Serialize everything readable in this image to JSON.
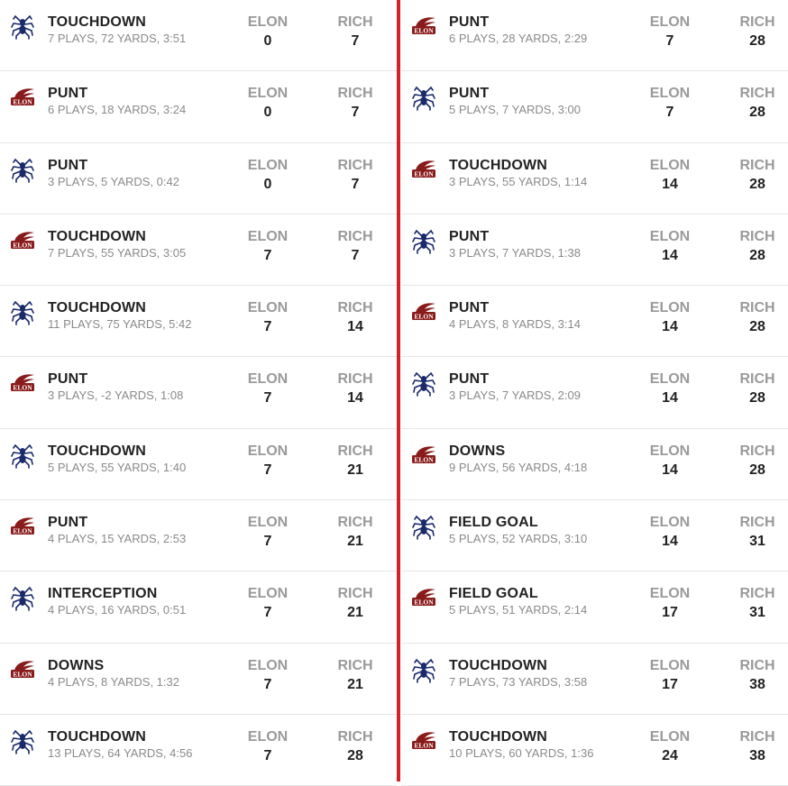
{
  "teams": {
    "home_abbr": "ELON",
    "away_abbr": "RICH"
  },
  "left_column": [
    {
      "team": "rich",
      "result": "TOUCHDOWN",
      "summary": "7 PLAYS, 72 YARDS, 3:51",
      "elon": "0",
      "rich": "7"
    },
    {
      "team": "elon",
      "result": "PUNT",
      "summary": "6 PLAYS, 18 YARDS, 3:24",
      "elon": "0",
      "rich": "7"
    },
    {
      "team": "rich",
      "result": "PUNT",
      "summary": "3 PLAYS, 5 YARDS, 0:42",
      "elon": "0",
      "rich": "7"
    },
    {
      "team": "elon",
      "result": "TOUCHDOWN",
      "summary": "7 PLAYS, 55 YARDS, 3:05",
      "elon": "7",
      "rich": "7"
    },
    {
      "team": "rich",
      "result": "TOUCHDOWN",
      "summary": "11 PLAYS, 75 YARDS, 5:42",
      "elon": "7",
      "rich": "14"
    },
    {
      "team": "elon",
      "result": "PUNT",
      "summary": "3 PLAYS, -2 YARDS, 1:08",
      "elon": "7",
      "rich": "14"
    },
    {
      "team": "rich",
      "result": "TOUCHDOWN",
      "summary": "5 PLAYS, 55 YARDS, 1:40",
      "elon": "7",
      "rich": "21"
    },
    {
      "team": "elon",
      "result": "PUNT",
      "summary": "4 PLAYS, 15 YARDS, 2:53",
      "elon": "7",
      "rich": "21"
    },
    {
      "team": "rich",
      "result": "INTERCEPTION",
      "summary": "4 PLAYS, 16 YARDS, 0:51",
      "elon": "7",
      "rich": "21"
    },
    {
      "team": "elon",
      "result": "DOWNS",
      "summary": "4 PLAYS, 8 YARDS, 1:32",
      "elon": "7",
      "rich": "21"
    },
    {
      "team": "rich",
      "result": "TOUCHDOWN",
      "summary": "13 PLAYS, 64 YARDS, 4:56",
      "elon": "7",
      "rich": "28"
    }
  ],
  "right_column": [
    {
      "team": "elon",
      "result": "PUNT",
      "summary": "6 PLAYS, 28 YARDS, 2:29",
      "elon": "7",
      "rich": "28"
    },
    {
      "team": "rich",
      "result": "PUNT",
      "summary": "5 PLAYS, 7 YARDS, 3:00",
      "elon": "7",
      "rich": "28"
    },
    {
      "team": "elon",
      "result": "TOUCHDOWN",
      "summary": "3 PLAYS, 55 YARDS, 1:14",
      "elon": "14",
      "rich": "28"
    },
    {
      "team": "rich",
      "result": "PUNT",
      "summary": "3 PLAYS, 7 YARDS, 1:38",
      "elon": "14",
      "rich": "28"
    },
    {
      "team": "elon",
      "result": "PUNT",
      "summary": "4 PLAYS, 8 YARDS, 3:14",
      "elon": "14",
      "rich": "28"
    },
    {
      "team": "rich",
      "result": "PUNT",
      "summary": "3 PLAYS, 7 YARDS, 2:09",
      "elon": "14",
      "rich": "28"
    },
    {
      "team": "elon",
      "result": "DOWNS",
      "summary": "9 PLAYS, 56 YARDS, 4:18",
      "elon": "14",
      "rich": "28"
    },
    {
      "team": "rich",
      "result": "FIELD GOAL",
      "summary": "5 PLAYS, 52 YARDS, 3:10",
      "elon": "14",
      "rich": "31"
    },
    {
      "team": "elon",
      "result": "FIELD GOAL",
      "summary": "5 PLAYS, 51 YARDS, 2:14",
      "elon": "17",
      "rich": "31"
    },
    {
      "team": "rich",
      "result": "TOUCHDOWN",
      "summary": "7 PLAYS, 73 YARDS, 3:58",
      "elon": "17",
      "rich": "38"
    },
    {
      "team": "elon",
      "result": "TOUCHDOWN",
      "summary": "10 PLAYS, 60 YARDS, 1:36",
      "elon": "24",
      "rich": "38"
    }
  ],
  "icons": {
    "rich": "spider-logo-icon",
    "elon": "elon-phoenix-logo-icon"
  },
  "colors": {
    "divider": "#d42027",
    "rich_logo": "#1b2a6b",
    "elon_logo": "#8a1b1b"
  }
}
